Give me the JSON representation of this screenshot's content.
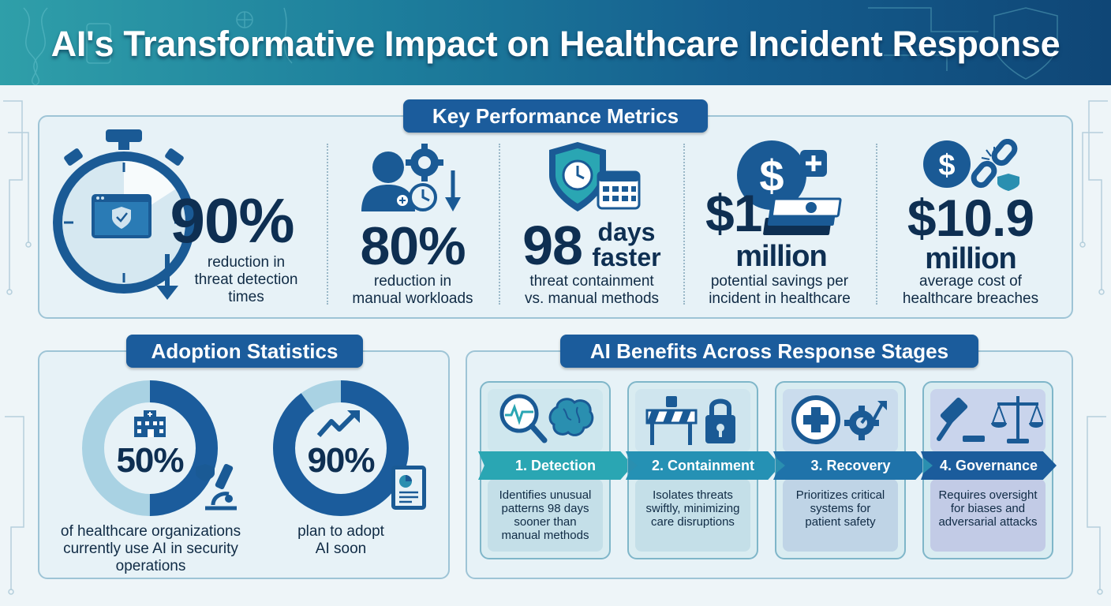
{
  "header": {
    "title": "AI's Transformative Impact on Healthcare Incident Response"
  },
  "kpi": {
    "title": "Key Performance Metrics",
    "metrics": [
      {
        "value": "90%",
        "desc_line1": "reduction in",
        "desc_line2": "threat detection",
        "desc_line3": "times",
        "icon": "stopwatch-icon"
      },
      {
        "value": "80%",
        "desc_line1": "reduction in",
        "desc_line2": "manual workloads",
        "icon": "worker-gear-icon"
      },
      {
        "value": "98",
        "value_suffix_line1": "days",
        "value_suffix_line2": "faster",
        "desc_line1": "threat containment",
        "desc_line2": "vs. manual methods",
        "icon": "shield-clock-icon"
      },
      {
        "value": "$1",
        "value_line2": "million",
        "desc_line1": "potential savings per",
        "desc_line2": "incident in healthcare",
        "icon": "money-plus-icon"
      },
      {
        "value": "$10.9",
        "value_line2": "million",
        "desc_line1": "average cost of",
        "desc_line2": "healthcare breaches",
        "icon": "money-broken-chain-icon"
      }
    ]
  },
  "adoption": {
    "title": "Adoption Statistics",
    "stats": [
      {
        "value": "50%",
        "fraction": 0.5,
        "desc_line1": "of healthcare organizations",
        "desc_line2": "currently use AI in security",
        "desc_line3": "operations"
      },
      {
        "value": "90%",
        "fraction": 0.9,
        "desc_line1": "plan to adopt",
        "desc_line2": "AI soon"
      }
    ]
  },
  "stages": {
    "title": "AI Benefits Across Response Stages",
    "items": [
      {
        "label": "1. Detection",
        "desc_line1": "Identifies unusual",
        "desc_line2": "patterns 98 days",
        "desc_line3": "sooner than",
        "desc_line4": "manual methods",
        "color": "#2aa6b3"
      },
      {
        "label": "2. Containment",
        "desc_line1": "Isolates threats",
        "desc_line2": "swiftly, minimizing",
        "desc_line3": "care disruptions",
        "desc_line4": "",
        "color": "#2591b4"
      },
      {
        "label": "3. Recovery",
        "desc_line1": "Prioritizes critical",
        "desc_line2": "systems for",
        "desc_line3": "patient safety",
        "desc_line4": "",
        "color": "#1f73aa"
      },
      {
        "label": "4. Governance",
        "desc_line1": "Requires oversight",
        "desc_line2": "for biases and",
        "desc_line3": "adversarial attacks",
        "desc_line4": "",
        "color": "#1b5c9c"
      }
    ]
  },
  "colors": {
    "navy": "#0e2f52",
    "accent": "#1b5c9c",
    "teal": "#2aa6b3",
    "ring_light": "#a9d2e3"
  }
}
